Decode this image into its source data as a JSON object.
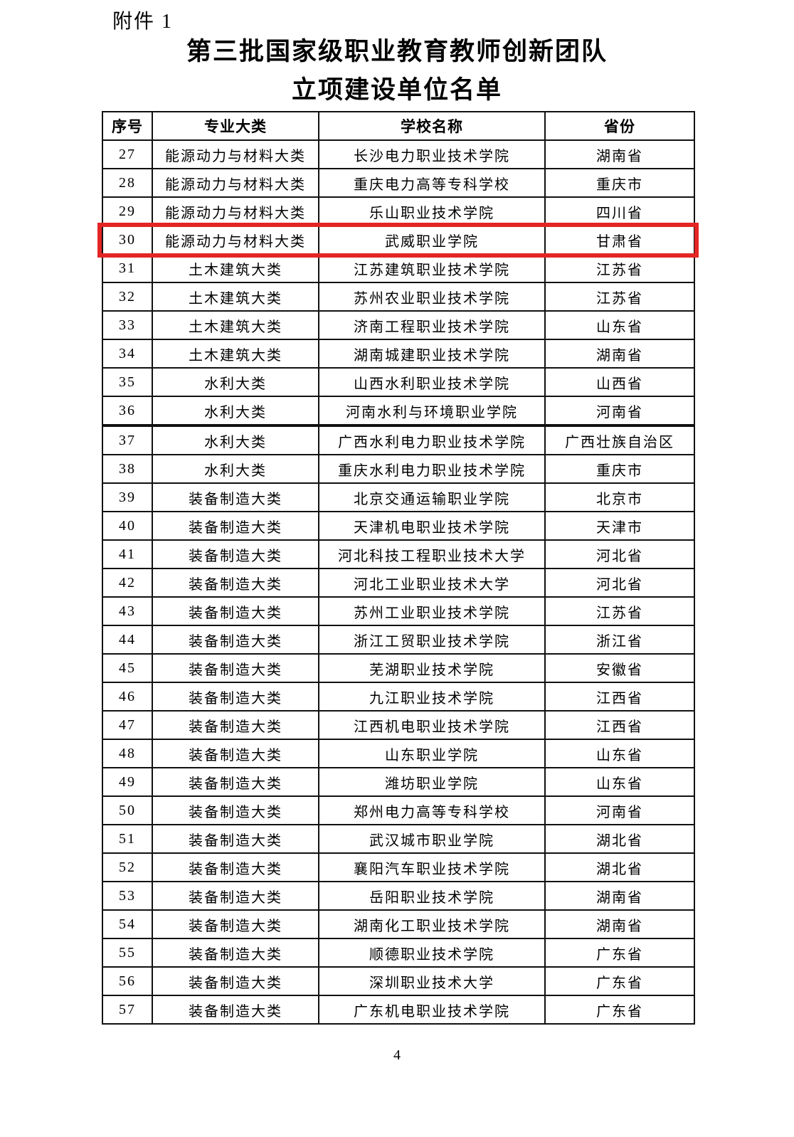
{
  "document": {
    "attachment_label": "附件 1",
    "title_line1": "第三批国家级职业教育教师创新团队",
    "title_line2": "立项建设单位名单",
    "page_number": "4"
  },
  "table": {
    "headers": [
      "序号",
      "专业大类",
      "学校名称",
      "省份"
    ],
    "highlight": {
      "row_no": "30",
      "color": "#e32524"
    },
    "thick_divider_after_row_no": "36",
    "rows": [
      {
        "no": "27",
        "category": "能源动力与材料大类",
        "school": "长沙电力职业技术学院",
        "province": "湖南省"
      },
      {
        "no": "28",
        "category": "能源动力与材料大类",
        "school": "重庆电力高等专科学校",
        "province": "重庆市"
      },
      {
        "no": "29",
        "category": "能源动力与材料大类",
        "school": "乐山职业技术学院",
        "province": "四川省"
      },
      {
        "no": "30",
        "category": "能源动力与材料大类",
        "school": "武威职业学院",
        "province": "甘肃省"
      },
      {
        "no": "31",
        "category": "土木建筑大类",
        "school": "江苏建筑职业技术学院",
        "province": "江苏省"
      },
      {
        "no": "32",
        "category": "土木建筑大类",
        "school": "苏州农业职业技术学院",
        "province": "江苏省"
      },
      {
        "no": "33",
        "category": "土木建筑大类",
        "school": "济南工程职业技术学院",
        "province": "山东省"
      },
      {
        "no": "34",
        "category": "土木建筑大类",
        "school": "湖南城建职业技术学院",
        "province": "湖南省"
      },
      {
        "no": "35",
        "category": "水利大类",
        "school": "山西水利职业技术学院",
        "province": "山西省"
      },
      {
        "no": "36",
        "category": "水利大类",
        "school": "河南水利与环境职业学院",
        "province": "河南省"
      },
      {
        "no": "37",
        "category": "水利大类",
        "school": "广西水利电力职业技术学院",
        "province": "广西壮族自治区"
      },
      {
        "no": "38",
        "category": "水利大类",
        "school": "重庆水利电力职业技术学院",
        "province": "重庆市"
      },
      {
        "no": "39",
        "category": "装备制造大类",
        "school": "北京交通运输职业学院",
        "province": "北京市"
      },
      {
        "no": "40",
        "category": "装备制造大类",
        "school": "天津机电职业技术学院",
        "province": "天津市"
      },
      {
        "no": "41",
        "category": "装备制造大类",
        "school": "河北科技工程职业技术大学",
        "province": "河北省"
      },
      {
        "no": "42",
        "category": "装备制造大类",
        "school": "河北工业职业技术大学",
        "province": "河北省"
      },
      {
        "no": "43",
        "category": "装备制造大类",
        "school": "苏州工业职业技术学院",
        "province": "江苏省"
      },
      {
        "no": "44",
        "category": "装备制造大类",
        "school": "浙江工贸职业技术学院",
        "province": "浙江省"
      },
      {
        "no": "45",
        "category": "装备制造大类",
        "school": "芜湖职业技术学院",
        "province": "安徽省"
      },
      {
        "no": "46",
        "category": "装备制造大类",
        "school": "九江职业技术学院",
        "province": "江西省"
      },
      {
        "no": "47",
        "category": "装备制造大类",
        "school": "江西机电职业技术学院",
        "province": "江西省"
      },
      {
        "no": "48",
        "category": "装备制造大类",
        "school": "山东职业学院",
        "province": "山东省"
      },
      {
        "no": "49",
        "category": "装备制造大类",
        "school": "潍坊职业学院",
        "province": "山东省"
      },
      {
        "no": "50",
        "category": "装备制造大类",
        "school": "郑州电力高等专科学校",
        "province": "河南省"
      },
      {
        "no": "51",
        "category": "装备制造大类",
        "school": "武汉城市职业学院",
        "province": "湖北省"
      },
      {
        "no": "52",
        "category": "装备制造大类",
        "school": "襄阳汽车职业技术学院",
        "province": "湖北省"
      },
      {
        "no": "53",
        "category": "装备制造大类",
        "school": "岳阳职业技术学院",
        "province": "湖南省"
      },
      {
        "no": "54",
        "category": "装备制造大类",
        "school": "湖南化工职业技术学院",
        "province": "湖南省"
      },
      {
        "no": "55",
        "category": "装备制造大类",
        "school": "顺德职业技术学院",
        "province": "广东省"
      },
      {
        "no": "56",
        "category": "装备制造大类",
        "school": "深圳职业技术大学",
        "province": "广东省"
      },
      {
        "no": "57",
        "category": "装备制造大类",
        "school": "广东机电职业技术学院",
        "province": "广东省"
      }
    ]
  }
}
